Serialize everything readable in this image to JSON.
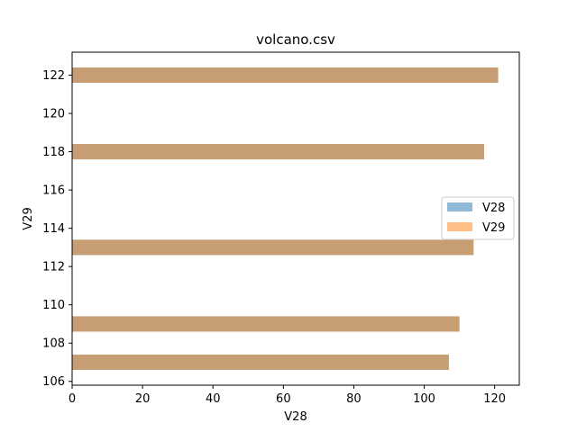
{
  "chart_data": {
    "type": "bar",
    "orientation": "horizontal",
    "title": "volcano.csv",
    "xlabel": "V28",
    "ylabel": "V29",
    "xlim": [
      0,
      127
    ],
    "ylim": [
      105.8,
      123.2
    ],
    "xticks": [
      0,
      20,
      40,
      60,
      80,
      100,
      120
    ],
    "yticks": [
      106,
      108,
      110,
      112,
      114,
      116,
      118,
      120,
      122
    ],
    "bar_thickness": 0.8,
    "grid": false,
    "legend_position": "center-right",
    "series": [
      {
        "name": "V28",
        "color": "#1f77b4",
        "opacity": 0.5,
        "points": [
          {
            "y": 107,
            "value": 107
          },
          {
            "y": 109,
            "value": 110
          },
          {
            "y": 113,
            "value": 114
          },
          {
            "y": 118,
            "value": 117
          },
          {
            "y": 122,
            "value": 121
          }
        ]
      },
      {
        "name": "V29",
        "color": "#ff7f0e",
        "opacity": 0.5,
        "points": [
          {
            "y": 107,
            "value": 107
          },
          {
            "y": 109,
            "value": 110
          },
          {
            "y": 113,
            "value": 114
          },
          {
            "y": 118,
            "value": 117
          },
          {
            "y": 122,
            "value": 121
          }
        ]
      }
    ]
  }
}
